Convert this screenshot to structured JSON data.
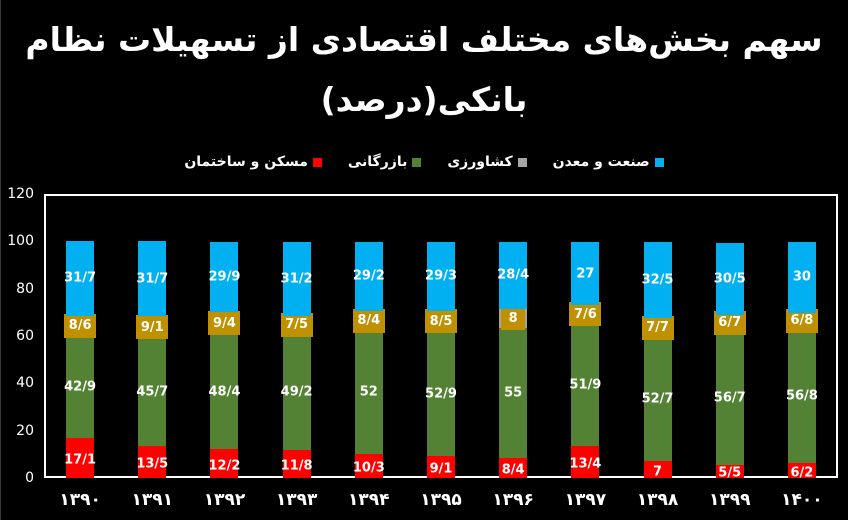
{
  "title_line1": "سهم بخش‌های مختلف اقتصادی از تسهیلات نظام",
  "title_line2": "بانکی(درصد)",
  "colors": {
    "industry": "#00B0F0",
    "agriculture": "#A5A5A5",
    "agriculture_label_bg": "#BF9000",
    "commerce": "#548235",
    "housing": "#FF0000"
  },
  "legend": [
    {
      "key": "industry",
      "label": "صنعت و معدن",
      "color": "#00B0F0"
    },
    {
      "key": "agriculture",
      "label": "کشاورزی",
      "color": "#A5A5A5"
    },
    {
      "key": "commerce",
      "label": "بازرگانی",
      "color": "#548235"
    },
    {
      "key": "housing",
      "label": "مسکن و ساختمان",
      "color": "#FF0000"
    }
  ],
  "y_ticks": [
    "0",
    "20",
    "40",
    "60",
    "80",
    "100",
    "120"
  ],
  "chart_data": {
    "type": "bar",
    "stacked": true,
    "title": "سهم بخش‌های مختلف اقتصادی از تسهیلات نظام بانکی(درصد)",
    "xlabel": "",
    "ylabel": "",
    "ylim": [
      0,
      120
    ],
    "grid": false,
    "legend_position": "top",
    "categories": [
      "۱۳۹۰",
      "۱۳۹۱",
      "۱۳۹۲",
      "۱۳۹۳",
      "۱۳۹۴",
      "۱۳۹۵",
      "۱۳۹۶",
      "۱۳۹۷",
      "۱۳۹۸",
      "۱۳۹۹",
      "۱۴۰۰"
    ],
    "series": [
      {
        "name": "مسکن و ساختمان",
        "key": "housing",
        "values": [
          17.1,
          13.5,
          12.2,
          11.8,
          10.3,
          9.1,
          8.4,
          13.4,
          7,
          5.5,
          6.2
        ],
        "labels": [
          "17/1",
          "13/5",
          "12/2",
          "11/8",
          "10/3",
          "9/1",
          "8/4",
          "13/4",
          "7",
          "5/5",
          "6/2"
        ]
      },
      {
        "name": "بازرگانی",
        "key": "commerce",
        "values": [
          42.9,
          45.7,
          48.4,
          49.2,
          52,
          52.9,
          55,
          51.9,
          52.7,
          56.7,
          56.8
        ],
        "labels": [
          "42/9",
          "45/7",
          "48/4",
          "49/2",
          "52",
          "52/9",
          "55",
          "51/9",
          "52/7",
          "56/7",
          "56/8"
        ]
      },
      {
        "name": "کشاورزی",
        "key": "agriculture",
        "values": [
          8.6,
          9.1,
          9.4,
          7.5,
          8.4,
          8.5,
          8,
          7.6,
          7.7,
          6.7,
          6.8
        ],
        "labels": [
          "8/6",
          "9/1",
          "9/4",
          "7/5",
          "8/4",
          "8/5",
          "8",
          "7/6",
          "7/7",
          "6/7",
          "6/8"
        ]
      },
      {
        "name": "صنعت و معدن",
        "key": "industry",
        "values": [
          31.7,
          31.7,
          29.9,
          31.2,
          29.2,
          29.3,
          28.4,
          27,
          32.5,
          30.5,
          30
        ],
        "labels": [
          "31/7",
          "31/7",
          "29/9",
          "31/2",
          "29/2",
          "29/3",
          "28/4",
          "27",
          "32/5",
          "30/5",
          "30"
        ]
      }
    ]
  }
}
